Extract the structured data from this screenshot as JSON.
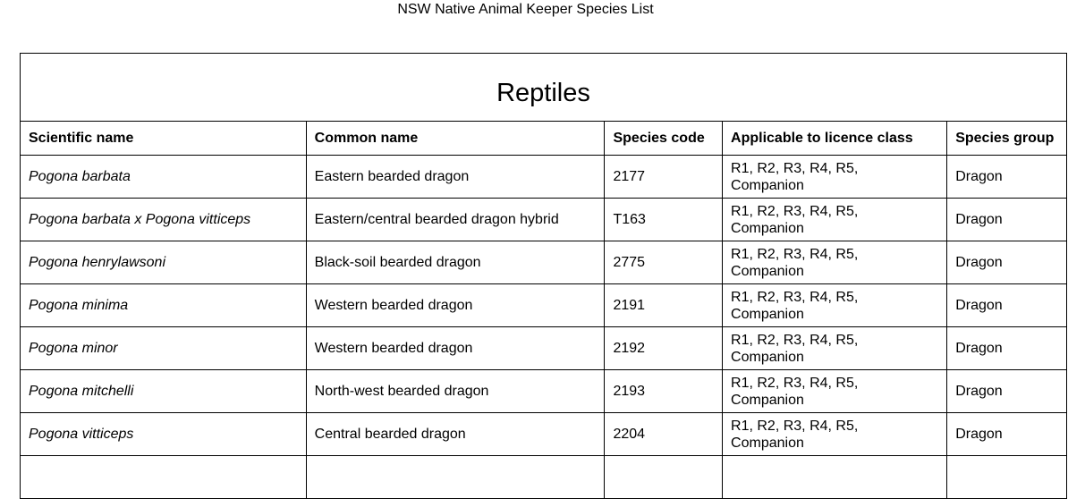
{
  "document": {
    "header": "NSW Native Animal Keeper Species List"
  },
  "table": {
    "section_title": "Reptiles",
    "columns": [
      "Scientific name",
      "Common name",
      "Species code",
      "Applicable to licence class",
      "Species group"
    ],
    "rows": [
      {
        "scientific": "Pogona barbata",
        "common": "Eastern bearded dragon",
        "code": "2177",
        "class_line1": "R1, R2, R3, R4, R5,",
        "class_line2": "Companion",
        "group": "Dragon"
      },
      {
        "scientific": "Pogona barbata x Pogona vitticeps",
        "common": "Eastern/central bearded dragon hybrid",
        "code": "T163",
        "class_line1": "R1, R2, R3, R4, R5,",
        "class_line2": "Companion",
        "group": "Dragon"
      },
      {
        "scientific": "Pogona henrylawsoni",
        "common": "Black-soil bearded dragon",
        "code": "2775",
        "class_line1": "R1, R2, R3, R4, R5,",
        "class_line2": "Companion",
        "group": "Dragon"
      },
      {
        "scientific": "Pogona minima",
        "common": "Western bearded dragon",
        "code": "2191",
        "class_line1": "R1, R2, R3, R4, R5,",
        "class_line2": "Companion",
        "group": "Dragon"
      },
      {
        "scientific": "Pogona minor",
        "common": "Western bearded dragon",
        "code": "2192",
        "class_line1": "R1, R2, R3, R4, R5,",
        "class_line2": "Companion",
        "group": "Dragon"
      },
      {
        "scientific": "Pogona mitchelli",
        "common": "North-west bearded dragon",
        "code": "2193",
        "class_line1": "R1, R2, R3, R4, R5,",
        "class_line2": "Companion",
        "group": "Dragon"
      },
      {
        "scientific": "Pogona vitticeps",
        "common": "Central bearded dragon",
        "code": "2204",
        "class_line1": "R1, R2, R3, R4, R5,",
        "class_line2": "Companion",
        "group": "Dragon"
      }
    ]
  }
}
